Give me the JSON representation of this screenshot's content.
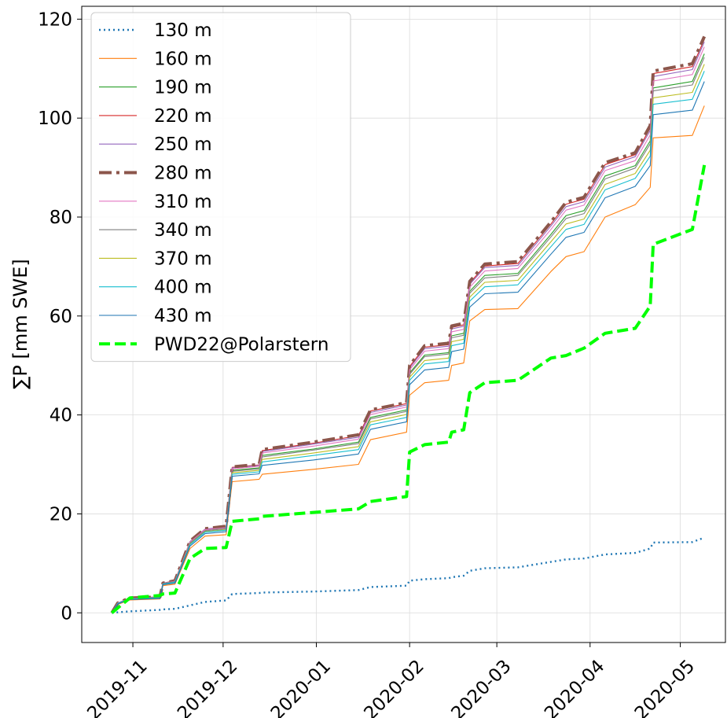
{
  "chart_data": {
    "type": "line",
    "y_label": "∑P [mm SWE]",
    "x": [
      "2019-10-25",
      "2019-10-27",
      "2019-10-31",
      "2019-11-10",
      "2019-11-11",
      "2019-11-15",
      "2019-11-20",
      "2019-11-25",
      "2019-12-02",
      "2019-12-04",
      "2019-12-13",
      "2019-12-14",
      "2019-12-31",
      "2020-01-15",
      "2020-01-19",
      "2020-01-31",
      "2020-02-01",
      "2020-02-06",
      "2020-02-14",
      "2020-02-15",
      "2020-02-19",
      "2020-02-21",
      "2020-02-26",
      "2020-03-08",
      "2020-03-19",
      "2020-03-24",
      "2020-03-30",
      "2020-04-06",
      "2020-04-16",
      "2020-04-21",
      "2020-04-22",
      "2020-05-05",
      "2020-05-09"
    ],
    "xlim": [
      "2019-10-15",
      "2020-05-16"
    ],
    "xticks": [
      {
        "value": "2019-11-01",
        "label": "2019-11"
      },
      {
        "value": "2019-12-01",
        "label": "2019-12"
      },
      {
        "value": "2020-01-01",
        "label": "2020-01"
      },
      {
        "value": "2020-02-01",
        "label": "2020-02"
      },
      {
        "value": "2020-03-01",
        "label": "2020-03"
      },
      {
        "value": "2020-04-01",
        "label": "2020-04"
      },
      {
        "value": "2020-05-01",
        "label": "2020-05"
      }
    ],
    "ylim": [
      -6,
      122.6
    ],
    "yticks": [
      0,
      20,
      40,
      60,
      80,
      100,
      120
    ],
    "grid": true,
    "legend": "upper left",
    "series": [
      {
        "name": "130 m",
        "color": "#1f77b4",
        "linestyle": "dotted",
        "values": [
          0,
          0.1,
          0.3,
          0.6,
          0.7,
          0.8,
          1.5,
          2.2,
          2.5,
          3.8,
          4,
          4.1,
          4.3,
          4.6,
          5.2,
          5.5,
          6.5,
          6.8,
          7,
          7.2,
          7.5,
          8.5,
          9,
          9.2,
          10.3,
          10.8,
          11,
          11.8,
          12.1,
          13,
          14.2,
          14.3,
          15.2
        ]
      },
      {
        "name": "160 m",
        "color": "#ff7f0e",
        "linestyle": "solid",
        "values": [
          0,
          1.7,
          2.6,
          2.8,
          5.5,
          5.8,
          13,
          15.5,
          15.8,
          26.5,
          27,
          28,
          29,
          30,
          35,
          36.5,
          44,
          46.5,
          47,
          50,
          50.5,
          59,
          61.3,
          61.5,
          69,
          72,
          73,
          80,
          82.5,
          86,
          96,
          96.5,
          102.5
        ]
      },
      {
        "name": "190 m",
        "color": "#2ca02c",
        "linestyle": "solid",
        "values": [
          0,
          1.9,
          2.9,
          3.1,
          5.9,
          6.3,
          14.1,
          16.6,
          17.1,
          28.8,
          29.3,
          31.8,
          33.1,
          34.5,
          39.5,
          41,
          48.5,
          52.1,
          52.6,
          56,
          56.5,
          65,
          68.2,
          68.6,
          76.5,
          80.3,
          81.3,
          88.3,
          90.4,
          95.4,
          106.1,
          107.4,
          113
        ]
      },
      {
        "name": "220 m",
        "color": "#d62728",
        "linestyle": "solid",
        "values": [
          0,
          2,
          3,
          3.2,
          6,
          6.5,
          14.4,
          16.9,
          17.4,
          29.4,
          29.9,
          32.8,
          34.3,
          35.8,
          40.8,
          42.3,
          49.8,
          53.7,
          54.2,
          57.7,
          58.2,
          66.7,
          70.1,
          70.6,
          78.6,
          82.6,
          83.6,
          90.6,
          92.6,
          98,
          109,
          110.4,
          115.9
        ]
      },
      {
        "name": "250 m",
        "color": "#9467bd",
        "linestyle": "solid",
        "values": [
          0,
          2,
          3,
          3.2,
          6,
          6.4,
          14.4,
          16.9,
          17.4,
          29.3,
          29.8,
          32.6,
          34.1,
          35.5,
          40.5,
          42,
          49.5,
          53.4,
          53.9,
          57.4,
          57.9,
          66.4,
          69.8,
          70.2,
          78.2,
          82.1,
          83.1,
          90.1,
          92.2,
          97.5,
          108.4,
          109.8,
          115.4
        ]
      },
      {
        "name": "280 m",
        "color": "#8c564b",
        "linestyle": "dashdot",
        "values": [
          0,
          2,
          3,
          3.2,
          6,
          6.5,
          14.5,
          17,
          17.5,
          29.5,
          30,
          33,
          34.5,
          36,
          41,
          42.5,
          50,
          54,
          54.5,
          58,
          58.5,
          67,
          70.5,
          71,
          79,
          83,
          84,
          91,
          93,
          98.5,
          109.5,
          111,
          116.5
        ]
      },
      {
        "name": "310 m",
        "color": "#e377c2",
        "linestyle": "solid",
        "values": [
          0,
          2,
          2.9,
          3.1,
          5.9,
          6.4,
          14.3,
          16.8,
          17.2,
          29.1,
          29.6,
          32.3,
          33.7,
          35.1,
          40.1,
          41.6,
          49.1,
          52.9,
          53.4,
          56.8,
          57.3,
          65.8,
          69.1,
          69.6,
          77.5,
          81.4,
          82.4,
          89.4,
          91.4,
          96.6,
          107.5,
          108.8,
          114.4
        ]
      },
      {
        "name": "340 m",
        "color": "#7f7f7f",
        "linestyle": "solid",
        "values": [
          0,
          1.9,
          2.9,
          3.1,
          5.9,
          6.3,
          14.1,
          16.6,
          17,
          28.6,
          29.1,
          31.5,
          32.9,
          34.2,
          39.2,
          40.7,
          48.2,
          51.8,
          52.3,
          55.6,
          56.1,
          64.6,
          67.7,
          68.2,
          76,
          79.7,
          80.7,
          87.7,
          89.9,
          94.8,
          105.5,
          106.7,
          112.3
        ]
      },
      {
        "name": "370 m",
        "color": "#bcbd22",
        "linestyle": "solid",
        "values": [
          0,
          1.9,
          2.8,
          3,
          5.8,
          6.2,
          13.9,
          16.4,
          16.8,
          28.3,
          28.8,
          31,
          32.3,
          33.6,
          38.6,
          40.1,
          47.6,
          51,
          51.5,
          54.8,
          55.3,
          63.8,
          66.8,
          67.2,
          75,
          78.6,
          79.6,
          86.6,
          88.8,
          93.5,
          104.1,
          105.2,
          110.9
        ]
      },
      {
        "name": "400 m",
        "color": "#17becf",
        "linestyle": "solid",
        "values": [
          0,
          1.9,
          2.8,
          3,
          5.8,
          6.2,
          13.8,
          16.3,
          16.7,
          28,
          28.5,
          30.5,
          31.8,
          33,
          38,
          39.5,
          47,
          50.3,
          50.8,
          54,
          54.5,
          63,
          65.9,
          66.3,
          74,
          77.5,
          78.5,
          85.5,
          87.8,
          92.3,
          102.8,
          103.8,
          109.5
        ]
      },
      {
        "name": "430 m",
        "color": "#1f77b4",
        "linestyle": "solid",
        "values": [
          0,
          1.8,
          2.7,
          2.9,
          5.7,
          6,
          13.5,
          16,
          16.4,
          27.6,
          28.1,
          29.8,
          30.9,
          32.1,
          37.1,
          38.6,
          46.1,
          49.1,
          49.6,
          52.8,
          53.3,
          61.8,
          64.5,
          64.8,
          72.5,
          75.9,
          76.9,
          83.9,
          86.2,
          90.4,
          100.7,
          101.6,
          107.4
        ]
      },
      {
        "name": "PWD22@Polarstern",
        "color": "#00ff00",
        "linestyle": "dashed",
        "values": [
          0,
          1,
          3,
          3.5,
          3.8,
          4,
          11,
          13,
          13.2,
          18.5,
          19,
          19.5,
          20.3,
          21,
          22.5,
          23.5,
          32.5,
          34,
          34.5,
          36.5,
          37,
          44.5,
          46.5,
          47,
          51.5,
          52,
          53.5,
          56.5,
          57.5,
          62,
          74.5,
          77.5,
          90.5
        ]
      }
    ]
  }
}
